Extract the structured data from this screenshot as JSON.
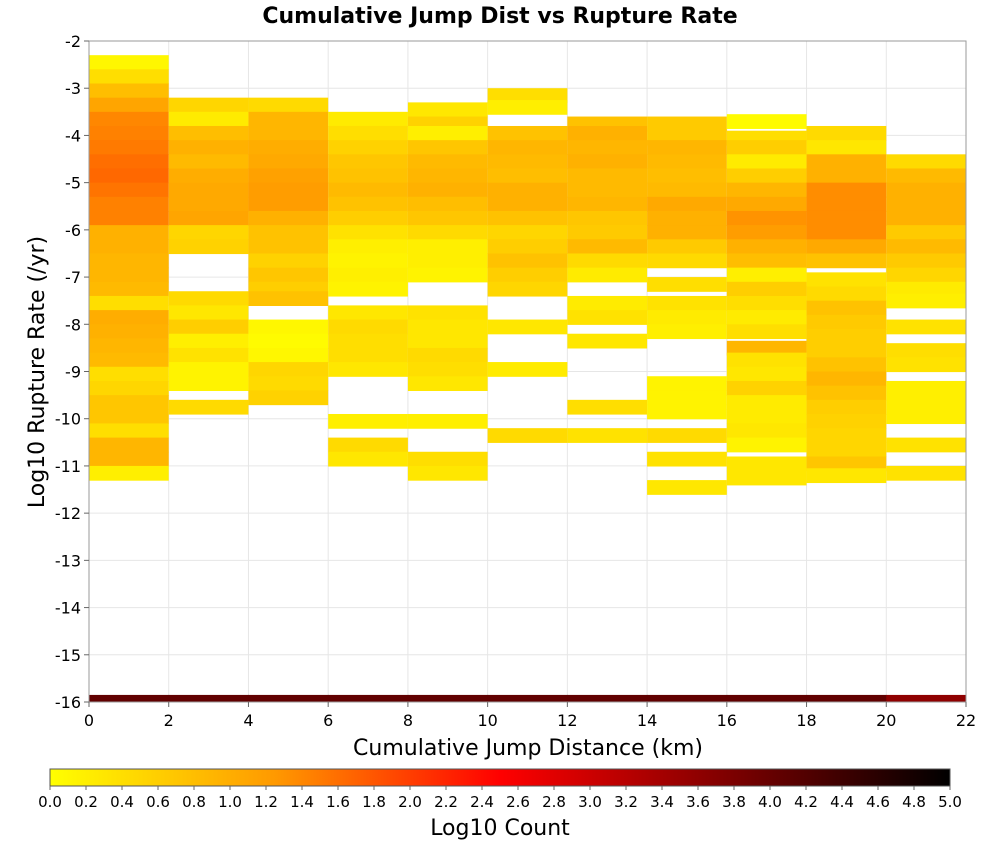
{
  "chart_data": {
    "type": "heatmap",
    "title": "Cumulative Jump Dist vs Rupture Rate",
    "xlabel": "Cumulative Jump Distance (km)",
    "ylabel": "Log10 Rupture Rate (/yr)",
    "xlim": [
      0,
      22
    ],
    "ylim": [
      -16,
      -2
    ],
    "x_ticks": [
      "0",
      "2",
      "4",
      "6",
      "8",
      "10",
      "12",
      "14",
      "16",
      "18",
      "20",
      "22"
    ],
    "y_ticks": [
      "-2",
      "-3",
      "-4",
      "-5",
      "-6",
      "-7",
      "-8",
      "-9",
      "-10",
      "-11",
      "-12",
      "-13",
      "-14",
      "-15",
      "-16"
    ],
    "grid": true,
    "colorscale": {
      "label": "Log10 Count",
      "range": [
        0.0,
        5.0
      ],
      "ticks": [
        "0.0",
        "0.2",
        "0.4",
        "0.6",
        "0.8",
        "1.0",
        "1.2",
        "1.4",
        "1.6",
        "1.8",
        "2.0",
        "2.2",
        "2.4",
        "2.6",
        "2.8",
        "3.0",
        "3.2",
        "3.4",
        "3.6",
        "3.8",
        "4.0",
        "4.2",
        "4.4",
        "4.6",
        "4.8",
        "5.0"
      ],
      "colors": [
        "#ffff00",
        "#ff9900",
        "#ff0000",
        "#800000",
        "#000000"
      ]
    },
    "x_bin_width": 2,
    "y_bin_height": 0.3,
    "columns": [
      {
        "x": 0,
        "cells": [
          [
            -2.45,
            0.1
          ],
          [
            -2.75,
            0.4
          ],
          [
            -3.05,
            0.8
          ],
          [
            -3.35,
            1.1
          ],
          [
            -3.65,
            1.4
          ],
          [
            -3.95,
            1.45
          ],
          [
            -4.25,
            1.5
          ],
          [
            -4.55,
            1.6
          ],
          [
            -4.85,
            1.65
          ],
          [
            -5.15,
            1.55
          ],
          [
            -5.45,
            1.45
          ],
          [
            -5.75,
            1.45
          ],
          [
            -6.05,
            0.95
          ],
          [
            -6.35,
            0.95
          ],
          [
            -6.65,
            0.9
          ],
          [
            -6.95,
            0.9
          ],
          [
            -7.25,
            0.85
          ],
          [
            -7.55,
            0.4
          ],
          [
            -7.85,
            1.0
          ],
          [
            -8.15,
            0.95
          ],
          [
            -8.45,
            0.9
          ],
          [
            -8.75,
            0.85
          ],
          [
            -9.05,
            0.4
          ],
          [
            -9.35,
            0.5
          ],
          [
            -9.65,
            0.7
          ],
          [
            -9.95,
            0.7
          ],
          [
            -10.25,
            0.4
          ],
          [
            -10.55,
            0.9
          ],
          [
            -10.85,
            0.9
          ],
          [
            -11.15,
            0.2
          ]
        ]
      },
      {
        "x": 2,
        "cells": [
          [
            -3.35,
            0.5
          ],
          [
            -3.65,
            0.25
          ],
          [
            -3.95,
            0.8
          ],
          [
            -4.25,
            0.95
          ],
          [
            -4.55,
            0.85
          ],
          [
            -4.85,
            1.0
          ],
          [
            -5.15,
            1.05
          ],
          [
            -5.45,
            1.05
          ],
          [
            -5.75,
            1.1
          ],
          [
            -6.05,
            0.5
          ],
          [
            -6.35,
            0.55
          ],
          [
            -7.45,
            0.45
          ],
          [
            -7.75,
            0.3
          ],
          [
            -8.05,
            0.6
          ],
          [
            -8.35,
            0.2
          ],
          [
            -8.65,
            0.35
          ],
          [
            -8.95,
            0.15
          ],
          [
            -9.25,
            0.15
          ],
          [
            -9.75,
            0.45
          ]
        ]
      },
      {
        "x": 4,
        "cells": [
          [
            -3.35,
            0.45
          ],
          [
            -3.65,
            0.9
          ],
          [
            -3.95,
            0.9
          ],
          [
            -4.25,
            1.0
          ],
          [
            -4.55,
            1.05
          ],
          [
            -4.85,
            1.15
          ],
          [
            -5.15,
            1.2
          ],
          [
            -5.45,
            1.2
          ],
          [
            -5.75,
            0.95
          ],
          [
            -6.05,
            0.75
          ],
          [
            -6.35,
            0.75
          ],
          [
            -6.65,
            0.55
          ],
          [
            -6.95,
            0.7
          ],
          [
            -7.25,
            0.6
          ],
          [
            -7.45,
            0.75
          ],
          [
            -8.05,
            0.1
          ],
          [
            -8.35,
            0.05
          ],
          [
            -8.65,
            0.1
          ],
          [
            -8.95,
            0.5
          ],
          [
            -9.25,
            0.45
          ],
          [
            -9.55,
            0.55
          ]
        ]
      },
      {
        "x": 6,
        "cells": [
          [
            -3.65,
            0.25
          ],
          [
            -3.95,
            0.4
          ],
          [
            -4.25,
            0.55
          ],
          [
            -4.55,
            0.7
          ],
          [
            -4.85,
            0.75
          ],
          [
            -5.15,
            0.85
          ],
          [
            -5.45,
            0.75
          ],
          [
            -5.75,
            0.6
          ],
          [
            -6.05,
            0.35
          ],
          [
            -6.35,
            0.2
          ],
          [
            -6.65,
            0.15
          ],
          [
            -6.95,
            0.2
          ],
          [
            -7.25,
            0.15
          ],
          [
            -7.75,
            0.3
          ],
          [
            -8.05,
            0.45
          ],
          [
            -8.35,
            0.4
          ],
          [
            -8.65,
            0.4
          ],
          [
            -8.95,
            0.3
          ],
          [
            -10.05,
            0.2
          ],
          [
            -10.55,
            0.45
          ],
          [
            -10.85,
            0.3
          ]
        ]
      },
      {
        "x": 8,
        "cells": [
          [
            -3.45,
            0.3
          ],
          [
            -3.75,
            0.55
          ],
          [
            -3.95,
            0.2
          ],
          [
            -4.25,
            0.7
          ],
          [
            -4.55,
            0.85
          ],
          [
            -4.85,
            0.9
          ],
          [
            -5.15,
            0.95
          ],
          [
            -5.45,
            0.8
          ],
          [
            -5.75,
            0.7
          ],
          [
            -6.05,
            0.45
          ],
          [
            -6.35,
            0.2
          ],
          [
            -6.65,
            0.2
          ],
          [
            -6.95,
            0.15
          ],
          [
            -7.75,
            0.35
          ],
          [
            -8.05,
            0.3
          ],
          [
            -8.35,
            0.3
          ],
          [
            -8.65,
            0.45
          ],
          [
            -8.95,
            0.4
          ],
          [
            -9.25,
            0.3
          ],
          [
            -10.05,
            0.2
          ],
          [
            -10.85,
            0.4
          ],
          [
            -11.15,
            0.3
          ]
        ]
      },
      {
        "x": 10,
        "cells": [
          [
            -3.15,
            0.4
          ],
          [
            -3.4,
            0.2
          ],
          [
            -3.95,
            0.75
          ],
          [
            -4.25,
            0.9
          ],
          [
            -4.55,
            0.85
          ],
          [
            -4.85,
            0.8
          ],
          [
            -5.15,
            0.95
          ],
          [
            -5.45,
            0.95
          ],
          [
            -5.75,
            0.75
          ],
          [
            -6.05,
            0.5
          ],
          [
            -6.35,
            0.6
          ],
          [
            -6.65,
            0.75
          ],
          [
            -6.95,
            0.6
          ],
          [
            -7.25,
            0.5
          ],
          [
            -8.05,
            0.3
          ],
          [
            -8.95,
            0.25
          ],
          [
            -10.35,
            0.45
          ]
        ]
      },
      {
        "x": 12,
        "cells": [
          [
            -3.75,
            0.75
          ],
          [
            -3.95,
            0.95
          ],
          [
            -4.25,
            0.9
          ],
          [
            -4.55,
            0.95
          ],
          [
            -4.85,
            0.85
          ],
          [
            -5.15,
            0.85
          ],
          [
            -5.45,
            0.9
          ],
          [
            -5.75,
            0.7
          ],
          [
            -6.05,
            0.65
          ],
          [
            -6.35,
            0.85
          ],
          [
            -6.65,
            0.45
          ],
          [
            -6.95,
            0.25
          ],
          [
            -7.55,
            0.25
          ],
          [
            -7.85,
            0.35
          ],
          [
            -8.35,
            0.3
          ],
          [
            -9.75,
            0.4
          ],
          [
            -10.35,
            0.35
          ]
        ]
      },
      {
        "x": 14,
        "cells": [
          [
            -3.75,
            0.65
          ],
          [
            -4.05,
            0.65
          ],
          [
            -4.25,
            0.9
          ],
          [
            -4.55,
            0.85
          ],
          [
            -4.85,
            0.8
          ],
          [
            -5.15,
            0.85
          ],
          [
            -5.45,
            1.05
          ],
          [
            -5.75,
            0.95
          ],
          [
            -6.05,
            0.95
          ],
          [
            -6.35,
            0.65
          ],
          [
            -6.65,
            0.45
          ],
          [
            -7.15,
            0.4
          ],
          [
            -7.55,
            0.35
          ],
          [
            -7.85,
            0.25
          ],
          [
            -8.15,
            0.2
          ],
          [
            -9.25,
            0.15
          ],
          [
            -9.55,
            0.15
          ],
          [
            -9.85,
            0.15
          ],
          [
            -10.35,
            0.45
          ],
          [
            -10.85,
            0.35
          ],
          [
            -11.45,
            0.3
          ]
        ]
      },
      {
        "x": 16,
        "cells": [
          [
            -3.7,
            0.05
          ],
          [
            -4.05,
            0.4
          ],
          [
            -4.25,
            0.6
          ],
          [
            -4.55,
            0.25
          ],
          [
            -4.85,
            0.6
          ],
          [
            -5.15,
            0.9
          ],
          [
            -5.45,
            1.05
          ],
          [
            -5.75,
            1.3
          ],
          [
            -6.05,
            1.2
          ],
          [
            -6.35,
            0.95
          ],
          [
            -6.65,
            0.8
          ],
          [
            -6.95,
            0.2
          ],
          [
            -7.25,
            0.6
          ],
          [
            -7.55,
            0.4
          ],
          [
            -7.85,
            0.25
          ],
          [
            -8.15,
            0.4
          ],
          [
            -8.5,
            0.9
          ],
          [
            -8.75,
            0.35
          ],
          [
            -9.05,
            0.3
          ],
          [
            -9.35,
            0.55
          ],
          [
            -9.65,
            0.25
          ],
          [
            -9.95,
            0.25
          ],
          [
            -10.25,
            0.3
          ],
          [
            -10.55,
            0.15
          ],
          [
            -10.95,
            0.3
          ],
          [
            -11.25,
            0.3
          ]
        ]
      },
      {
        "x": 18,
        "cells": [
          [
            -3.95,
            0.45
          ],
          [
            -4.25,
            0.3
          ],
          [
            -4.55,
            0.95
          ],
          [
            -4.85,
            0.95
          ],
          [
            -5.15,
            1.35
          ],
          [
            -5.45,
            1.35
          ],
          [
            -5.75,
            1.35
          ],
          [
            -6.05,
            1.35
          ],
          [
            -6.35,
            1.05
          ],
          [
            -6.65,
            0.75
          ],
          [
            -7.05,
            0.35
          ],
          [
            -7.35,
            0.45
          ],
          [
            -7.65,
            0.75
          ],
          [
            -7.95,
            0.65
          ],
          [
            -8.25,
            0.6
          ],
          [
            -8.55,
            0.6
          ],
          [
            -8.85,
            0.75
          ],
          [
            -9.15,
            0.9
          ],
          [
            -9.45,
            0.75
          ],
          [
            -9.75,
            0.6
          ],
          [
            -10.05,
            0.55
          ],
          [
            -10.35,
            0.5
          ],
          [
            -10.65,
            0.5
          ],
          [
            -10.95,
            0.7
          ],
          [
            -11.2,
            0.3
          ]
        ]
      },
      {
        "x": 20,
        "cells": [
          [
            -4.55,
            0.45
          ],
          [
            -4.85,
            0.85
          ],
          [
            -5.15,
            0.95
          ],
          [
            -5.45,
            0.95
          ],
          [
            -5.75,
            0.95
          ],
          [
            -6.05,
            0.65
          ],
          [
            -6.35,
            0.85
          ],
          [
            -6.65,
            0.65
          ],
          [
            -6.95,
            0.5
          ],
          [
            -7.25,
            0.25
          ],
          [
            -7.5,
            0.2
          ],
          [
            -8.05,
            0.35
          ],
          [
            -8.55,
            0.4
          ],
          [
            -8.85,
            0.35
          ],
          [
            -9.35,
            0.2
          ],
          [
            -9.65,
            0.2
          ],
          [
            -9.95,
            0.2
          ],
          [
            -10.55,
            0.35
          ],
          [
            -11.15,
            0.35
          ]
        ]
      }
    ],
    "bottom_strip": {
      "y": -16,
      "values": [
        4.05,
        4.05,
        4.05,
        4.05,
        4.05,
        4.05,
        4.05,
        4.05,
        4.05,
        4.05,
        3.6
      ]
    }
  }
}
